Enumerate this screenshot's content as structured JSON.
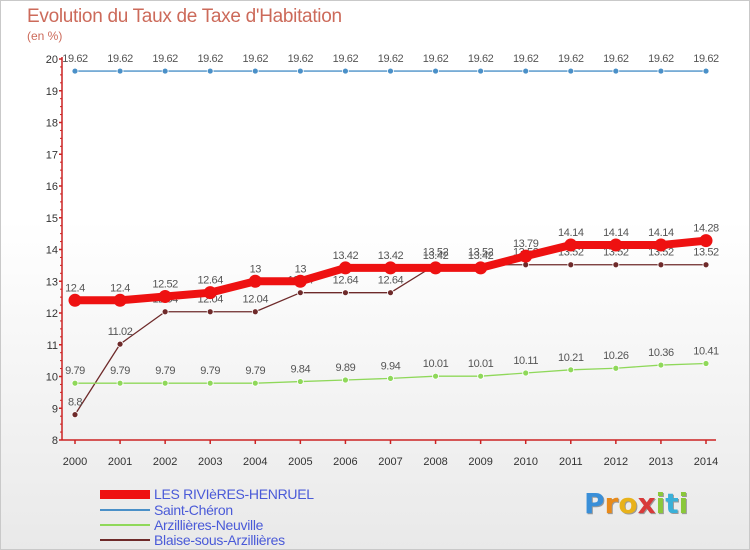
{
  "title": "Evolution du Taux de Taxe d'Habitation",
  "subtitle": "(en %)",
  "logo_text": "Proxiti",
  "chart_data": {
    "type": "line",
    "x": [
      "2000",
      "2001",
      "2002",
      "2003",
      "2004",
      "2005",
      "2006",
      "2007",
      "2008",
      "2009",
      "2010",
      "2011",
      "2012",
      "2013",
      "2014"
    ],
    "ylim": [
      8,
      20
    ],
    "yticks": [
      "8",
      "9",
      "10",
      "11",
      "12",
      "13",
      "14",
      "15",
      "16",
      "17",
      "18",
      "19",
      "20"
    ],
    "grid": false,
    "legend_position": "bottom-left",
    "series": [
      {
        "name": "Blaise-sous-Arzillières",
        "color": "#6e2a2a",
        "values": [
          8.8,
          11.02,
          12.04,
          12.04,
          12.04,
          12.64,
          12.64,
          12.64,
          13.52,
          13.52,
          13.52,
          13.52,
          13.52,
          13.52,
          13.52
        ],
        "labels": [
          "8.8",
          "11.02",
          "12.04",
          "12.04",
          "12.04",
          "12.64",
          "12.64",
          "12.64",
          "13.52",
          "13.52",
          "13.52",
          "13.52",
          "13.52",
          "13.52",
          "13.52"
        ]
      },
      {
        "name": "Arzillières-Neuville",
        "color": "#8fd85a",
        "values": [
          9.79,
          9.79,
          9.79,
          9.79,
          9.79,
          9.84,
          9.89,
          9.94,
          10.01,
          10.01,
          10.11,
          10.21,
          10.26,
          10.36,
          10.41
        ],
        "labels": [
          "9.79",
          "9.79",
          "9.79",
          "9.79",
          "9.79",
          "9.84",
          "9.89",
          "9.94",
          "10.01",
          "10.01",
          "10.11",
          "10.21",
          "10.26",
          "10.36",
          "10.41"
        ]
      },
      {
        "name": "Saint-Chéron",
        "color": "#4a90c8",
        "values": [
          19.62,
          19.62,
          19.62,
          19.62,
          19.62,
          19.62,
          19.62,
          19.62,
          19.62,
          19.62,
          19.62,
          19.62,
          19.62,
          19.62,
          19.62
        ],
        "labels": [
          "19.62",
          "19.62",
          "19.62",
          "19.62",
          "19.62",
          "19.62",
          "19.62",
          "19.62",
          "19.62",
          "19.62",
          "19.62",
          "19.62",
          "19.62",
          "19.62",
          "19.62"
        ]
      },
      {
        "name": "LES RIVIèRES-HENRUEL",
        "color": "#ee1111",
        "values": [
          12.4,
          12.4,
          12.52,
          12.64,
          13,
          13,
          13.42,
          13.42,
          13.42,
          13.42,
          13.79,
          14.14,
          14.14,
          14.14,
          14.28
        ],
        "labels": [
          "12.4",
          "12.4",
          "12.52",
          "12.64",
          "13",
          "13",
          "13.42",
          "13.42",
          "13.42",
          "13.42",
          "13.79",
          "14.14",
          "14.14",
          "14.14",
          "14.28"
        ]
      }
    ],
    "legend": [
      "LES RIVIèRES-HENRUEL",
      "Saint-Chéron",
      "Arzillières-Neuville",
      "Blaise-sous-Arzillières"
    ]
  }
}
